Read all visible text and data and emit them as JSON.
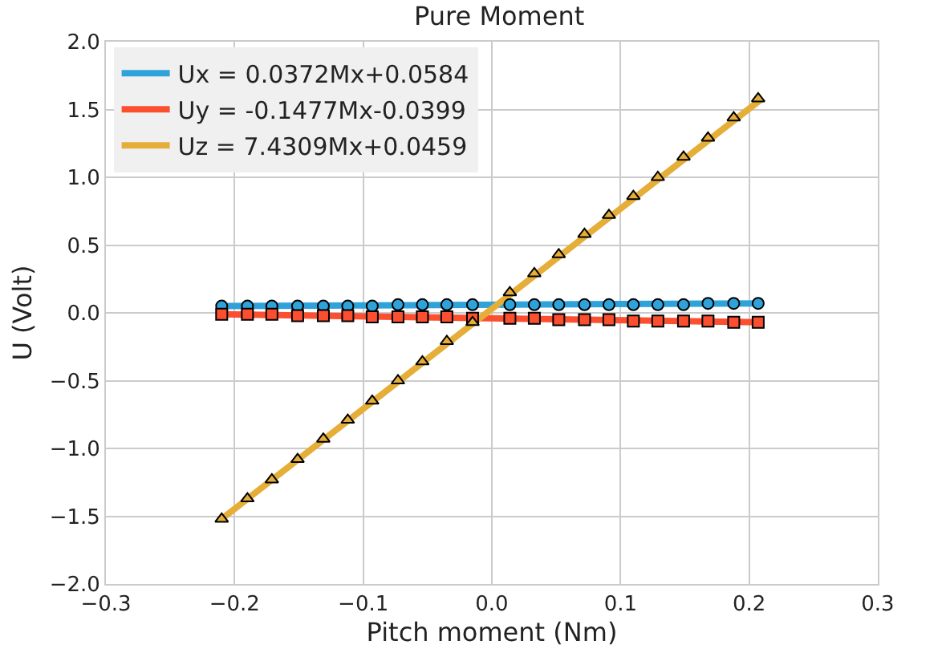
{
  "chart_data": {
    "type": "scatter",
    "title": "Pure Moment",
    "xlabel": "Pitch moment (Nm)",
    "ylabel": "U (Volt)",
    "xlim": [
      -0.3,
      0.3
    ],
    "ylim": [
      -2.0,
      2.0
    ],
    "xticks": [
      {
        "value": -0.3,
        "label": "−0.3"
      },
      {
        "value": -0.2,
        "label": "−0.2"
      },
      {
        "value": -0.1,
        "label": "−0.1"
      },
      {
        "value": 0,
        "label": "0.0"
      },
      {
        "value": 0.1,
        "label": "0.1"
      },
      {
        "value": 0.2,
        "label": "0.2"
      },
      {
        "value": 0.3,
        "label": "0.3"
      }
    ],
    "yticks": [
      {
        "value": -2,
        "label": "−2.0"
      },
      {
        "value": -1.5,
        "label": "−1.5"
      },
      {
        "value": -1,
        "label": "−1.0"
      },
      {
        "value": -0.5,
        "label": "−0.5"
      },
      {
        "value": 0,
        "label": "0.0"
      },
      {
        "value": 0.5,
        "label": "0.5"
      },
      {
        "value": 1,
        "label": "1.0"
      },
      {
        "value": 1.5,
        "label": "1.5"
      },
      {
        "value": 2,
        "label": "2.0"
      }
    ],
    "grid": true,
    "legend": "top left",
    "series": [
      {
        "name": "Ux = 0.0372Mx+0.0584",
        "type": "line",
        "color": "#30a2da",
        "line_style": "solid",
        "x": [
          -0.21,
          0.21
        ],
        "values": [
          0.05,
          0.07
        ]
      },
      {
        "name": "Uy = -0.1477Mx-0.0399",
        "type": "line",
        "color": "#fc4f30",
        "line_style": "solid",
        "x": [
          -0.21,
          0.21
        ],
        "values": [
          -0.01,
          -0.07
        ]
      },
      {
        "name": "Uz = 7.4309Mx+0.0459",
        "type": "line",
        "color": "#e5ae38",
        "line_style": "solid",
        "x": [
          -0.21,
          0.21
        ],
        "values": [
          -1.52,
          1.58
        ]
      },
      {
        "marker": "circle",
        "color": "#30a2da",
        "x": [
          -0.21,
          -0.19,
          -0.171,
          -0.151,
          -0.131,
          -0.112,
          -0.093,
          -0.073,
          -0.054,
          -0.035,
          -0.015,
          0.014,
          0.033,
          0.052,
          0.072,
          0.091,
          0.11,
          0.129,
          0.149,
          0.168,
          0.188,
          0.207
        ],
        "values": [
          0.05,
          0.05,
          0.05,
          0.05,
          0.05,
          0.05,
          0.05,
          0.06,
          0.06,
          0.06,
          0.06,
          0.06,
          0.06,
          0.06,
          0.06,
          0.06,
          0.06,
          0.06,
          0.06,
          0.07,
          0.07,
          0.07
        ]
      },
      {
        "marker": "square",
        "color": "#fc4f30",
        "x": [
          -0.21,
          -0.19,
          -0.171,
          -0.151,
          -0.131,
          -0.112,
          -0.093,
          -0.073,
          -0.054,
          -0.035,
          -0.015,
          0.014,
          0.033,
          0.052,
          0.072,
          0.091,
          0.11,
          0.129,
          0.149,
          0.168,
          0.188,
          0.207
        ],
        "values": [
          -0.01,
          -0.01,
          -0.01,
          -0.02,
          -0.02,
          -0.02,
          -0.03,
          -0.03,
          -0.03,
          -0.03,
          -0.04,
          -0.04,
          -0.04,
          -0.05,
          -0.05,
          -0.05,
          -0.06,
          -0.06,
          -0.06,
          -0.06,
          -0.07,
          -0.07
        ]
      },
      {
        "marker": "triangle",
        "color": "#e5ae38",
        "x": [
          -0.21,
          -0.19,
          -0.171,
          -0.151,
          -0.131,
          -0.112,
          -0.093,
          -0.073,
          -0.054,
          -0.035,
          -0.015,
          0.014,
          0.033,
          0.052,
          0.072,
          0.091,
          0.11,
          0.129,
          0.149,
          0.168,
          0.188,
          0.207
        ],
        "values": [
          -1.52,
          -1.37,
          -1.23,
          -1.08,
          -0.93,
          -0.79,
          -0.65,
          -0.5,
          -0.36,
          -0.21,
          -0.07,
          0.15,
          0.29,
          0.43,
          0.58,
          0.72,
          0.86,
          1.0,
          1.15,
          1.29,
          1.44,
          1.58
        ]
      }
    ]
  }
}
